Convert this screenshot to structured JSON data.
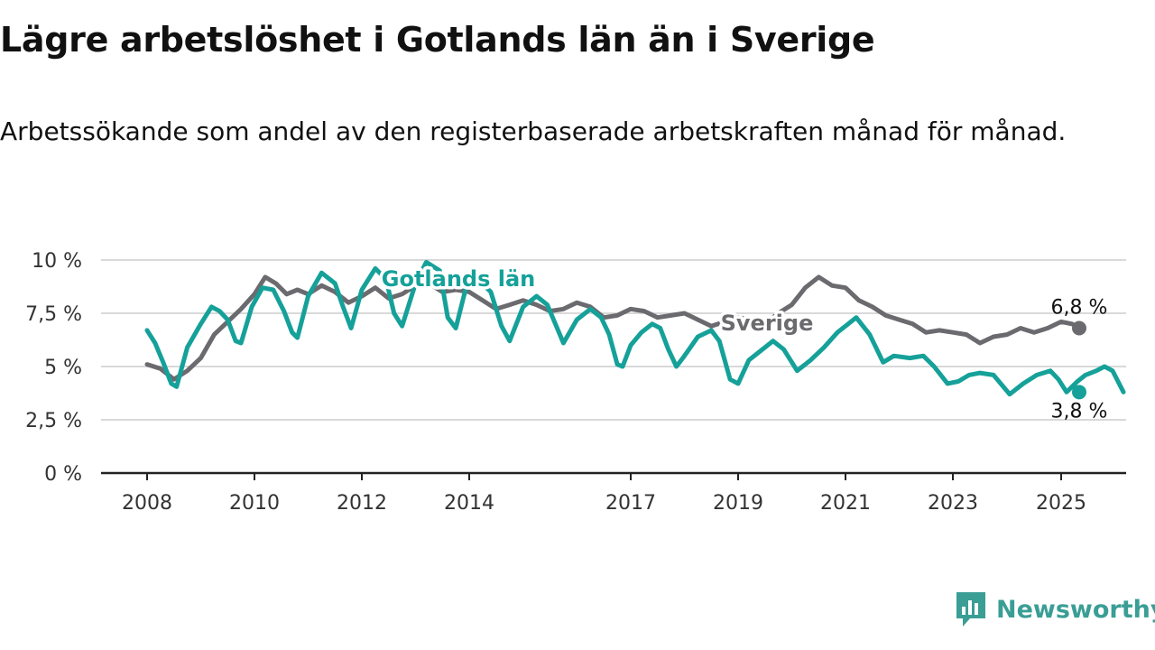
{
  "title": "Lägre arbetslöshet i Gotlands län än i Sverige",
  "subtitle": "Arbetssökande som andel av den registerbaserade arbetskraften månad för månad.",
  "brand": {
    "name": "Newsworthy",
    "icon": "bar-chart-chat-icon",
    "color": "#3a9e95"
  },
  "chart_data": {
    "type": "line",
    "ylim": [
      0,
      10
    ],
    "yticks": [
      0,
      2.5,
      5,
      7.5,
      10
    ],
    "ytick_labels": [
      "0 %",
      "2,5 %",
      "5 %",
      "7,5 %",
      "10 %"
    ],
    "xlim": [
      2008,
      2026.2
    ],
    "xticks": [
      2008,
      2010,
      2012,
      2014,
      2017,
      2019,
      2021,
      2023,
      2025
    ],
    "xtick_labels": [
      "2008",
      "2010",
      "2012",
      "2014",
      "2017",
      "2019",
      "2021",
      "2023",
      "2025"
    ],
    "grid": "horizontal",
    "legend": "inline labels",
    "series": [
      {
        "name": "Sverige",
        "color": "#6b6b6f",
        "end_label": "6,8 %",
        "points": [
          [
            2008.0,
            5.1
          ],
          [
            2008.25,
            4.9
          ],
          [
            2008.5,
            4.4
          ],
          [
            2008.75,
            4.8
          ],
          [
            2009.0,
            5.4
          ],
          [
            2009.25,
            6.5
          ],
          [
            2009.5,
            7.1
          ],
          [
            2009.75,
            7.7
          ],
          [
            2010.0,
            8.4
          ],
          [
            2010.2,
            9.2
          ],
          [
            2010.4,
            8.9
          ],
          [
            2010.6,
            8.4
          ],
          [
            2010.8,
            8.6
          ],
          [
            2011.0,
            8.4
          ],
          [
            2011.25,
            8.8
          ],
          [
            2011.5,
            8.5
          ],
          [
            2011.75,
            8.0
          ],
          [
            2012.0,
            8.3
          ],
          [
            2012.25,
            8.7
          ],
          [
            2012.5,
            8.2
          ],
          [
            2012.75,
            8.4
          ],
          [
            2013.0,
            8.8
          ],
          [
            2013.25,
            8.9
          ],
          [
            2013.5,
            8.5
          ],
          [
            2013.75,
            8.6
          ],
          [
            2014.0,
            8.5
          ],
          [
            2014.25,
            8.1
          ],
          [
            2014.5,
            7.7
          ],
          [
            2014.75,
            7.9
          ],
          [
            2015.0,
            8.1
          ],
          [
            2015.25,
            7.9
          ],
          [
            2015.5,
            7.6
          ],
          [
            2015.75,
            7.7
          ],
          [
            2016.0,
            8.0
          ],
          [
            2016.25,
            7.8
          ],
          [
            2016.5,
            7.3
          ],
          [
            2016.75,
            7.4
          ],
          [
            2017.0,
            7.7
          ],
          [
            2017.25,
            7.6
          ],
          [
            2017.5,
            7.3
          ],
          [
            2017.75,
            7.4
          ],
          [
            2018.0,
            7.5
          ],
          [
            2018.25,
            7.2
          ],
          [
            2018.5,
            6.9
          ],
          [
            2018.75,
            7.1
          ],
          [
            2019.0,
            7.3
          ],
          [
            2019.25,
            7.2
          ],
          [
            2019.5,
            7.0
          ],
          [
            2019.75,
            7.5
          ],
          [
            2020.0,
            7.9
          ],
          [
            2020.25,
            8.7
          ],
          [
            2020.5,
            9.2
          ],
          [
            2020.75,
            8.8
          ],
          [
            2021.0,
            8.7
          ],
          [
            2021.25,
            8.1
          ],
          [
            2021.5,
            7.8
          ],
          [
            2021.75,
            7.4
          ],
          [
            2022.0,
            7.2
          ],
          [
            2022.25,
            7.0
          ],
          [
            2022.5,
            6.6
          ],
          [
            2022.75,
            6.7
          ],
          [
            2023.0,
            6.6
          ],
          [
            2023.25,
            6.5
          ],
          [
            2023.5,
            6.1
          ],
          [
            2023.75,
            6.4
          ],
          [
            2024.0,
            6.5
          ],
          [
            2024.25,
            6.8
          ],
          [
            2024.5,
            6.6
          ],
          [
            2024.75,
            6.8
          ],
          [
            2025.0,
            7.1
          ],
          [
            2025.2,
            7.0
          ],
          [
            2025.35,
            6.8
          ]
        ]
      },
      {
        "name": "Gotlands län",
        "color": "#15a199",
        "end_label": "3,8 %",
        "points": [
          [
            2008.0,
            6.7
          ],
          [
            2008.15,
            6.1
          ],
          [
            2008.3,
            5.2
          ],
          [
            2008.45,
            4.2
          ],
          [
            2008.55,
            4.05
          ],
          [
            2008.75,
            5.9
          ],
          [
            2009.0,
            7.0
          ],
          [
            2009.2,
            7.8
          ],
          [
            2009.35,
            7.6
          ],
          [
            2009.5,
            7.2
          ],
          [
            2009.65,
            6.2
          ],
          [
            2009.75,
            6.1
          ],
          [
            2009.95,
            7.8
          ],
          [
            2010.15,
            8.7
          ],
          [
            2010.35,
            8.6
          ],
          [
            2010.55,
            7.6
          ],
          [
            2010.7,
            6.6
          ],
          [
            2010.8,
            6.35
          ],
          [
            2011.0,
            8.3
          ],
          [
            2011.25,
            9.4
          ],
          [
            2011.5,
            8.9
          ],
          [
            2011.65,
            7.8
          ],
          [
            2011.8,
            6.8
          ],
          [
            2012.0,
            8.6
          ],
          [
            2012.25,
            9.6
          ],
          [
            2012.45,
            9.1
          ],
          [
            2012.6,
            7.5
          ],
          [
            2012.75,
            6.9
          ],
          [
            2013.0,
            8.9
          ],
          [
            2013.2,
            9.9
          ],
          [
            2013.45,
            9.5
          ],
          [
            2013.6,
            7.3
          ],
          [
            2013.75,
            6.8
          ],
          [
            2013.95,
            8.8
          ],
          [
            2014.2,
            9.0
          ],
          [
            2014.4,
            8.5
          ],
          [
            2014.6,
            6.9
          ],
          [
            2014.75,
            6.2
          ],
          [
            2015.0,
            7.8
          ],
          [
            2015.25,
            8.3
          ],
          [
            2015.45,
            7.9
          ],
          [
            2015.6,
            7.0
          ],
          [
            2015.75,
            6.1
          ],
          [
            2016.0,
            7.2
          ],
          [
            2016.25,
            7.7
          ],
          [
            2016.45,
            7.3
          ],
          [
            2016.6,
            6.5
          ],
          [
            2016.75,
            5.1
          ],
          [
            2016.85,
            5.0
          ],
          [
            2017.0,
            6.0
          ],
          [
            2017.2,
            6.6
          ],
          [
            2017.4,
            7.0
          ],
          [
            2017.55,
            6.8
          ],
          [
            2017.7,
            5.8
          ],
          [
            2017.85,
            5.0
          ],
          [
            2018.0,
            5.5
          ],
          [
            2018.25,
            6.4
          ],
          [
            2018.5,
            6.7
          ],
          [
            2018.65,
            6.2
          ],
          [
            2018.85,
            4.4
          ],
          [
            2019.0,
            4.2
          ],
          [
            2019.2,
            5.3
          ],
          [
            2019.4,
            5.7
          ],
          [
            2019.65,
            6.2
          ],
          [
            2019.85,
            5.8
          ],
          [
            2020.1,
            4.8
          ],
          [
            2020.35,
            5.3
          ],
          [
            2020.6,
            5.9
          ],
          [
            2020.85,
            6.6
          ],
          [
            2021.0,
            6.9
          ],
          [
            2021.2,
            7.3
          ],
          [
            2021.45,
            6.5
          ],
          [
            2021.7,
            5.2
          ],
          [
            2021.9,
            5.5
          ],
          [
            2022.2,
            5.4
          ],
          [
            2022.45,
            5.5
          ],
          [
            2022.65,
            5.0
          ],
          [
            2022.9,
            4.2
          ],
          [
            2023.1,
            4.3
          ],
          [
            2023.3,
            4.6
          ],
          [
            2023.5,
            4.7
          ],
          [
            2023.75,
            4.6
          ],
          [
            2023.95,
            4.0
          ],
          [
            2024.05,
            3.7
          ],
          [
            2024.3,
            4.2
          ],
          [
            2024.55,
            4.6
          ],
          [
            2024.8,
            4.8
          ],
          [
            2024.95,
            4.4
          ],
          [
            2025.1,
            3.8
          ],
          [
            2025.3,
            4.3
          ],
          [
            2025.45,
            4.6
          ],
          [
            2025.65,
            4.8
          ],
          [
            2025.8,
            5.0
          ],
          [
            2025.95,
            4.8
          ],
          [
            2026.15,
            3.8
          ]
        ]
      }
    ]
  }
}
